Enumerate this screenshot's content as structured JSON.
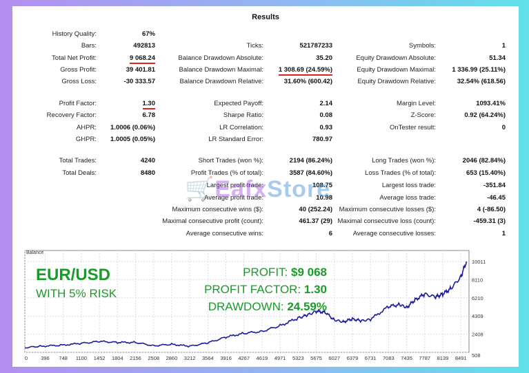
{
  "title": "Results",
  "col1": [
    {
      "label": "History Quality:",
      "value": "67%"
    },
    {
      "label": "Bars:",
      "value": "492813"
    },
    {
      "label": "Total Net Profit:",
      "value": "9 068.24"
    },
    {
      "label": "Gross Profit:",
      "value": "39 401.81"
    },
    {
      "label": "Gross Loss:",
      "value": "-30 333.57"
    },
    {
      "label": "Profit Factor:",
      "value": "1.30"
    },
    {
      "label": "Recovery Factor:",
      "value": "6.78"
    },
    {
      "label": "AHPR:",
      "value": "1.0006 (0.06%)"
    },
    {
      "label": "GHPR:",
      "value": "1.0005 (0.05%)"
    },
    {
      "label": "Total Trades:",
      "value": "4240"
    },
    {
      "label": "Total Deals:",
      "value": "8480"
    }
  ],
  "col2": [
    {
      "label": "Ticks:",
      "value": "521787233"
    },
    {
      "label": "Balance Drawdown Absolute:",
      "value": "35.20"
    },
    {
      "label": "Balance Drawdown Maximal:",
      "value": "1 308.69 (24.59%)"
    },
    {
      "label": "Balance Drawdown Relative:",
      "value": "31.60% (600.42)"
    },
    {
      "label": "Expected Payoff:",
      "value": "2.14"
    },
    {
      "label": "Sharpe Ratio:",
      "value": "0.08"
    },
    {
      "label": "LR Correlation:",
      "value": "0.93"
    },
    {
      "label": "LR Standard Error:",
      "value": "780.97"
    },
    {
      "label": "Short Trades (won %):",
      "value": "2194 (86.24%)"
    },
    {
      "label": "Profit Trades (% of total):",
      "value": "3587 (84.60%)"
    },
    {
      "label": "Largest profit trade:",
      "value": "108.75"
    },
    {
      "label": "Average profit trade:",
      "value": "10.98"
    },
    {
      "label": "Maximum consecutive wins ($):",
      "value": "40 (252.24)"
    },
    {
      "label": "Maximal consecutive profit (count):",
      "value": "461.37 (29)"
    },
    {
      "label": "Average consecutive wins:",
      "value": "6"
    }
  ],
  "col3": [
    {
      "label": "Symbols:",
      "value": "1"
    },
    {
      "label": "Equity Drawdown Absolute:",
      "value": "51.34"
    },
    {
      "label": "Equity Drawdown Maximal:",
      "value": "1 336.99 (25.11%)"
    },
    {
      "label": "Equity Drawdown Relative:",
      "value": "32.54% (618.56)"
    },
    {
      "label": "Margin Level:",
      "value": "1093.41%"
    },
    {
      "label": "Z-Score:",
      "value": "0.92 (64.24%)"
    },
    {
      "label": "OnTester result:",
      "value": "0"
    },
    {
      "label": "Long Trades (won %):",
      "value": "2046 (82.84%)"
    },
    {
      "label": "Loss Trades (% of total):",
      "value": "653 (15.40%)"
    },
    {
      "label": "Largest loss trade:",
      "value": "-351.84"
    },
    {
      "label": "Average loss trade:",
      "value": "-46.45"
    },
    {
      "label": "Maximum consecutive losses ($):",
      "value": "4 (-86.50)"
    },
    {
      "label": "Maximal consecutive loss (count):",
      "value": "-459.31 (3)"
    },
    {
      "label": "Average consecutive losses:",
      "value": "1"
    }
  ],
  "watermark": {
    "part1": "Eafx",
    "part2": "Store"
  },
  "overlay": {
    "pair": "EUR/USD",
    "risk": "WITH 5% RISK",
    "profit_label": "PROFIT:",
    "profit_value": "$9 068",
    "pf_label": "PROFIT FACTOR:",
    "pf_value": "1.30",
    "dd_label": "DRAWDOWN:",
    "dd_value": "24.59%"
  },
  "colors": {
    "line": "#1a1aa0",
    "overlay": "#1a9a2a",
    "underline": "#e02020"
  },
  "chart_data": {
    "type": "line",
    "title": "Balance",
    "xlabel": "",
    "ylabel": "",
    "xlim": [
      0,
      8650
    ],
    "ylim": [
      508,
      11160
    ],
    "xticks": [
      0,
      396,
      748,
      1100,
      1452,
      1804,
      2156,
      2508,
      2860,
      3212,
      3564,
      3916,
      4267,
      4619,
      4971,
      5323,
      5675,
      6027,
      6379,
      6731,
      7083,
      7435,
      7787,
      8139,
      8491
    ],
    "yticks": [
      508,
      2408,
      4309,
      6210,
      8110,
      10011
    ],
    "series": [
      {
        "name": "Balance",
        "x": [
          0,
          300,
          700,
          1100,
          1452,
          1804,
          2156,
          2508,
          2860,
          3212,
          3564,
          3916,
          4267,
          4619,
          4971,
          5323,
          5500,
          5675,
          5850,
          6027,
          6200,
          6379,
          6550,
          6731,
          7083,
          7300,
          7435,
          7600,
          7787,
          8000,
          8139,
          8300,
          8491,
          8600
        ],
        "y": [
          1000,
          1150,
          1250,
          1450,
          1650,
          1550,
          1550,
          1200,
          1350,
          1150,
          1500,
          2100,
          2500,
          2700,
          3300,
          4100,
          4400,
          4800,
          4700,
          3900,
          3700,
          4000,
          3800,
          3950,
          5300,
          5500,
          5200,
          6000,
          6600,
          6300,
          6600,
          7200,
          8400,
          10011
        ]
      }
    ]
  }
}
